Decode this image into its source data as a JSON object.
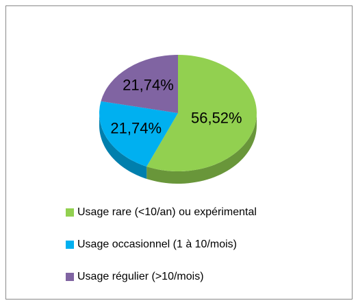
{
  "chart_data": {
    "type": "pie",
    "categories": [
      "Usage rare (<10/an) ou expérimental",
      "Usage occasionnel (1 à 10/mois)",
      "Usage régulier (>10/mois)"
    ],
    "values": [
      56.52,
      21.74,
      21.74
    ],
    "value_labels": [
      "56,52%",
      "21,74%",
      "21,74%"
    ],
    "colors": [
      "#92d050",
      "#00b0f0",
      "#8064a2"
    ],
    "legend": "bottom"
  }
}
